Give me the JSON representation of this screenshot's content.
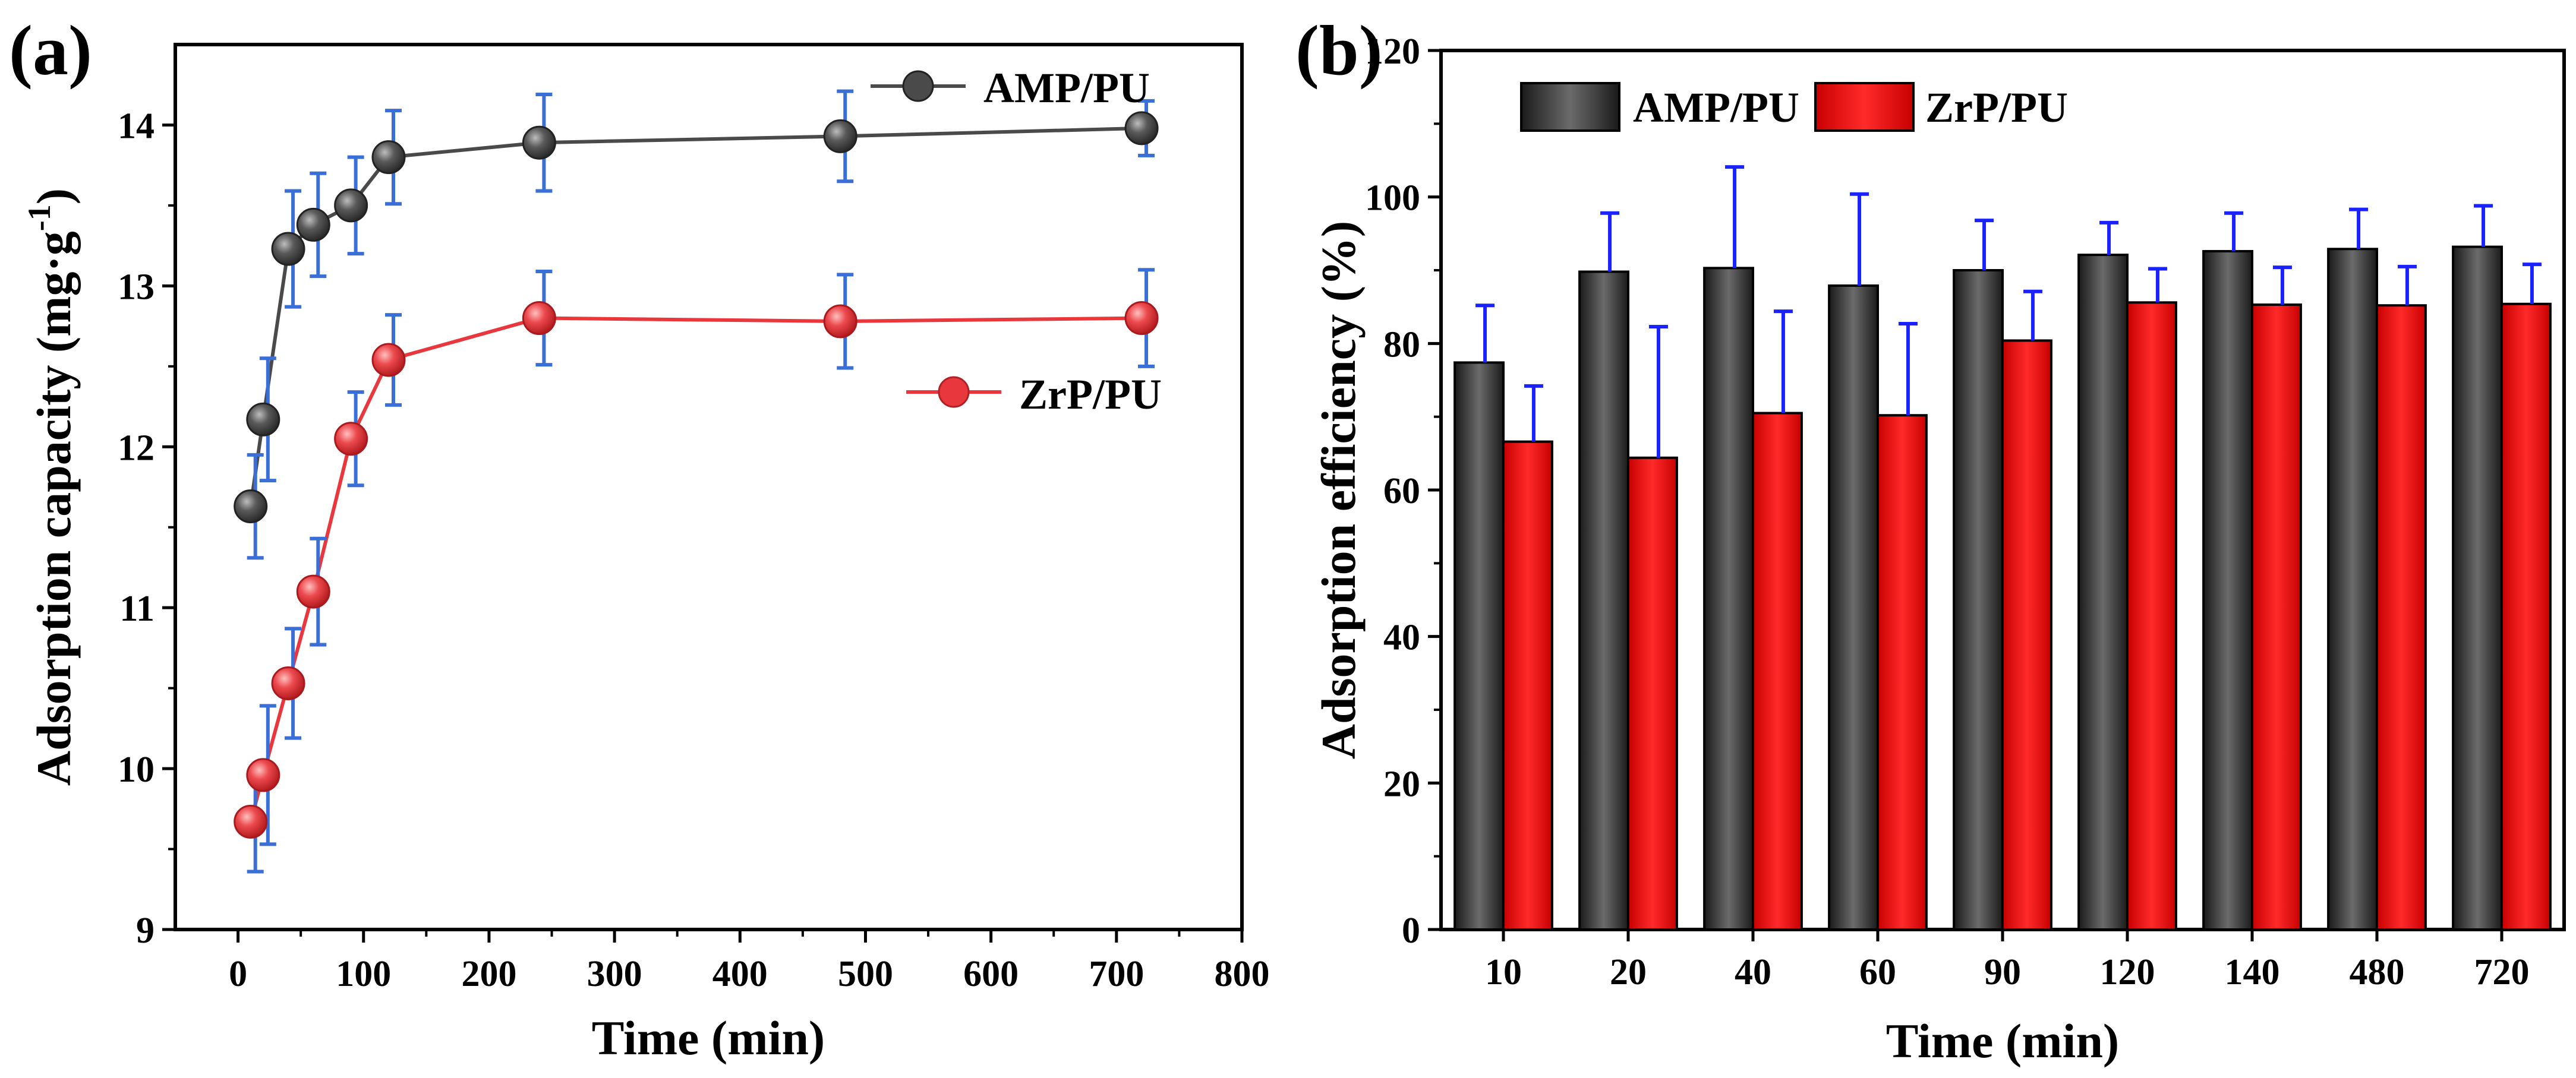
{
  "chart_data": [
    {
      "panel_label": "(a)",
      "type": "line",
      "xlabel": "Time (min)",
      "ylabel_main": "Adsorption capacity (mg·g",
      "ylabel_sup": "-1",
      "ylabel_close": ")",
      "xlim": [
        -50,
        800
      ],
      "ylim": [
        9,
        14.5
      ],
      "x_ticks": [
        "0",
        "100",
        "200",
        "300",
        "400",
        "500",
        "600",
        "700",
        "800"
      ],
      "y_ticks": [
        "9",
        "10",
        "11",
        "12",
        "13",
        "14"
      ],
      "series": [
        {
          "name": "AMP/PU",
          "color": "#4a4a4a",
          "x": [
            10,
            20,
            40,
            60,
            90,
            120,
            240,
            480,
            720
          ],
          "y": [
            11.63,
            12.17,
            13.23,
            13.38,
            13.5,
            13.8,
            13.89,
            13.93,
            13.98
          ],
          "err": [
            0.32,
            0.38,
            0.36,
            0.32,
            0.3,
            0.29,
            0.3,
            0.28,
            0.17
          ]
        },
        {
          "name": "ZrP/PU",
          "color": "#e8383d",
          "x": [
            10,
            20,
            40,
            60,
            90,
            120,
            240,
            480,
            720
          ],
          "y": [
            9.67,
            9.96,
            10.53,
            11.1,
            12.05,
            12.54,
            12.8,
            12.78,
            12.8
          ],
          "err": [
            0.31,
            0.43,
            0.34,
            0.33,
            0.29,
            0.28,
            0.29,
            0.29,
            0.3
          ]
        }
      ],
      "error_bar_color": "#3a6fd8"
    },
    {
      "panel_label": "(b)",
      "type": "bar",
      "xlabel": "Time (min)",
      "ylabel": "Adsorption efficiency (%)",
      "ylim": [
        0,
        120
      ],
      "y_ticks": [
        "0",
        "20",
        "40",
        "60",
        "80",
        "100",
        "120"
      ],
      "categories": [
        "10",
        "20",
        "40",
        "60",
        "90",
        "120",
        "140",
        "480",
        "720"
      ],
      "series": [
        {
          "name": "AMP/PU",
          "color": "#2b2b2b",
          "values": [
            77.4,
            89.8,
            90.3,
            87.9,
            90.0,
            92.1,
            92.6,
            92.9,
            93.2
          ],
          "err": [
            7.8,
            8.0,
            13.8,
            12.5,
            6.8,
            4.4,
            5.2,
            5.4,
            5.6
          ]
        },
        {
          "name": "ZrP/PU",
          "color": "#ee1111",
          "values": [
            66.6,
            64.4,
            70.5,
            70.2,
            80.4,
            85.6,
            85.3,
            85.2,
            85.4
          ],
          "err": [
            7.6,
            17.9,
            13.9,
            12.5,
            6.7,
            4.6,
            5.1,
            5.3,
            5.4
          ]
        }
      ],
      "error_bar_color": "#1a22ff"
    }
  ]
}
